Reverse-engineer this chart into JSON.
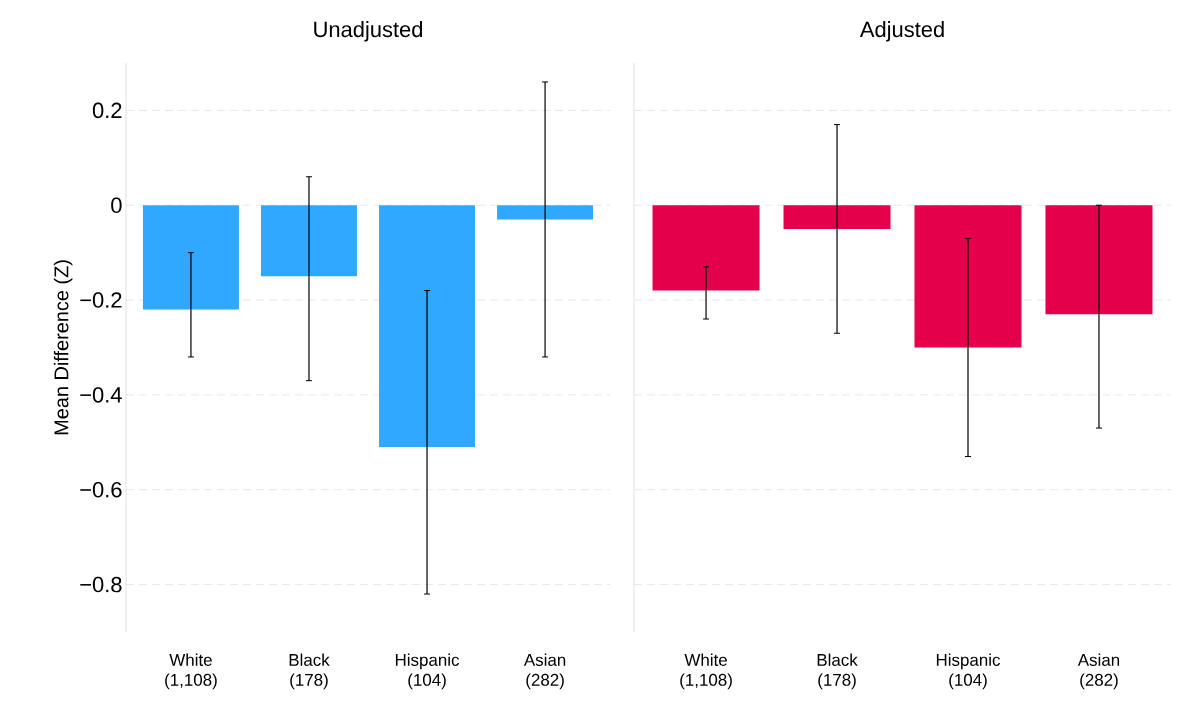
{
  "chart_data": [
    {
      "type": "bar",
      "title": "Unadjusted",
      "ylabel": "Mean Difference (Z)",
      "categories": [
        "White (1,108)",
        "Black (178)",
        "Hispanic (104)",
        "Asian (282)"
      ],
      "values": [
        -0.22,
        -0.15,
        -0.51,
        -0.03
      ],
      "color": "#30a8ff",
      "errors": [
        [
          -0.32,
          -0.1
        ],
        [
          -0.37,
          0.06
        ],
        [
          -0.82,
          -0.18
        ],
        [
          -0.32,
          0.26
        ]
      ],
      "ylim": [
        -0.9,
        0.3
      ],
      "yticks": [
        {
          "value": -0.8,
          "label": "−0.8"
        },
        {
          "value": -0.6,
          "label": "−0.6"
        },
        {
          "value": -0.4,
          "label": "−0.4"
        },
        {
          "value": -0.2,
          "label": "−0.2"
        },
        0,
        0.2
      ],
      "grid": "y"
    },
    {
      "type": "bar",
      "title": "Adjusted",
      "categories": [
        "White (1,108)",
        "Black (178)",
        "Hispanic (104)",
        "Asian (282)"
      ],
      "values": [
        -0.18,
        -0.05,
        -0.3,
        -0.23
      ],
      "color": "#e4004b",
      "errors": [
        [
          -0.24,
          -0.13
        ],
        [
          -0.27,
          0.17
        ],
        [
          -0.53,
          -0.07
        ],
        [
          -0.47,
          0
        ]
      ],
      "ylim": [
        -0.9,
        0.3
      ],
      "yticks": [
        {
          "value": -0.8,
          "label": null
        },
        {
          "value": -0.6,
          "label": null
        },
        {
          "value": -0.4,
          "label": null
        },
        {
          "value": -0.2,
          "label": null
        },
        {
          "value": 0,
          "label": null
        },
        {
          "value": 0.2,
          "label": null
        }
      ],
      "grid": "y",
      "tick_labels": "x"
    }
  ]
}
